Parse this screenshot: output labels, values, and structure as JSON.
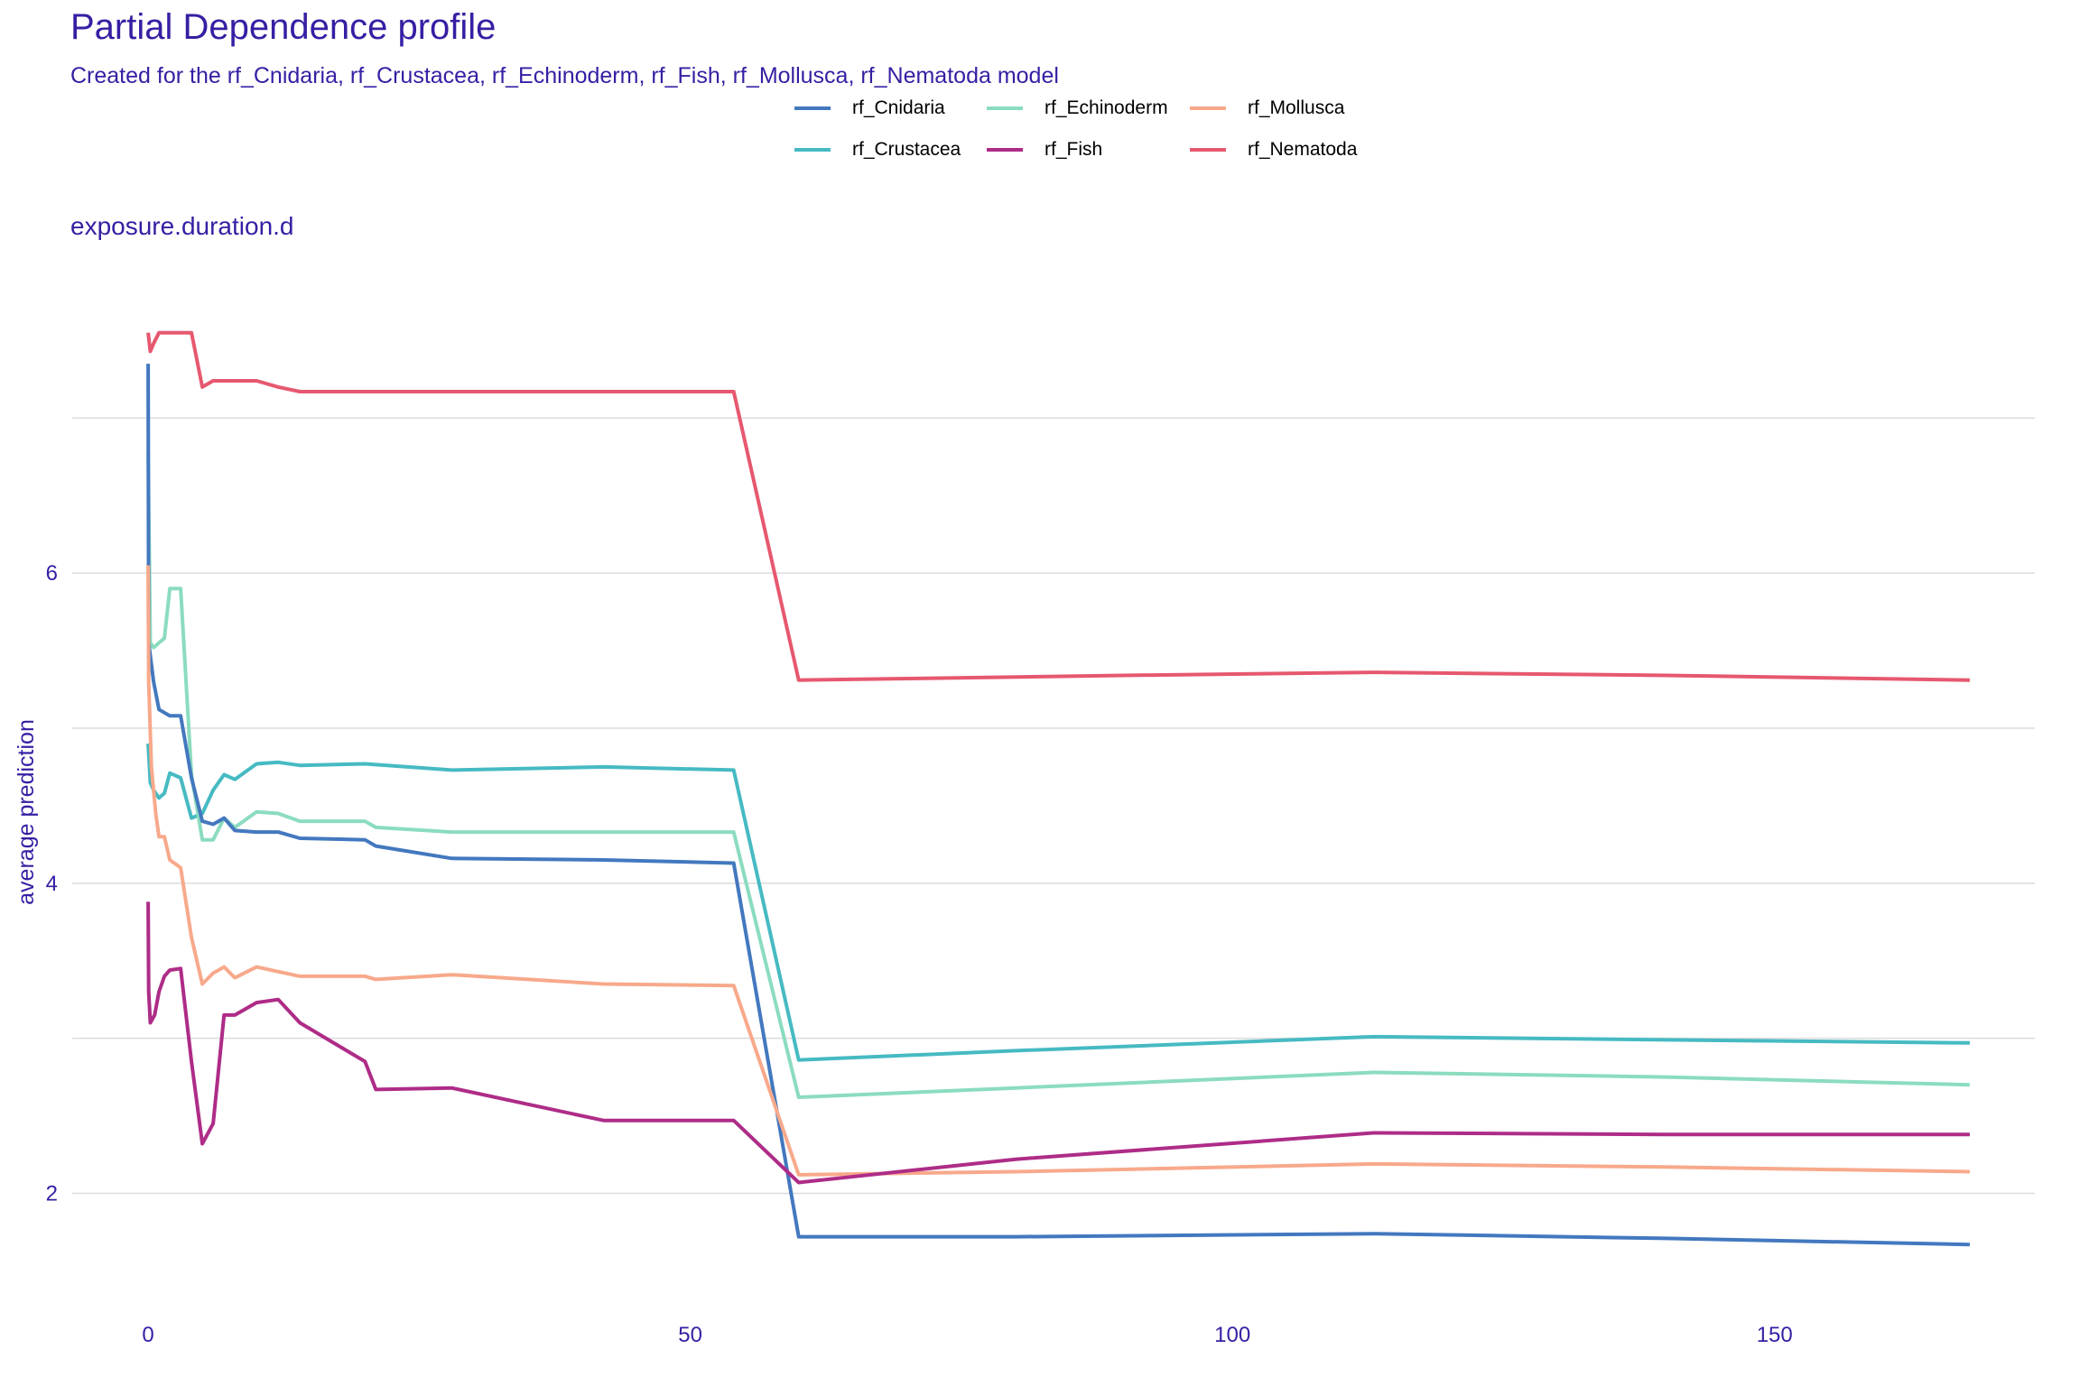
{
  "title": "Partial Dependence profile",
  "subtitle": "Created for the rf_Cnidaria, rf_Crustacea, rf_Echinoderm, rf_Fish, rf_Mollusca, rf_Nematoda model",
  "legend": [
    {
      "name": "rf_Cnidaria",
      "color": "#4378bf"
    },
    {
      "name": "rf_Echinoderm",
      "color": "#8bdcbe"
    },
    {
      "name": "rf_Mollusca",
      "color": "#f8a98b"
    },
    {
      "name": "rf_Crustacea",
      "color": "#46bac2"
    },
    {
      "name": "rf_Fish",
      "color": "#ae2c87"
    },
    {
      "name": "rf_Nematoda",
      "color": "#e6586f"
    }
  ],
  "chart_data": {
    "type": "line",
    "facet_label": "exposure.duration.d",
    "xlabel": "",
    "ylabel": "average prediction",
    "xlim": [
      -7,
      174
    ],
    "ylim": [
      1.2,
      7.95
    ],
    "x_ticks": [
      0,
      50,
      100,
      150
    ],
    "y_ticks": [
      2,
      4,
      6
    ],
    "grid": true,
    "legend_position": "top",
    "series": [
      {
        "name": "rf_Nematoda",
        "color": "#e6586f",
        "x": [
          0,
          0.2,
          0.5,
          1,
          1.5,
          2,
          3,
          4,
          5,
          6,
          7,
          8,
          10,
          12,
          14,
          20,
          28,
          42,
          54,
          60,
          70,
          90,
          113,
          140,
          168
        ],
        "y": [
          7.55,
          7.43,
          7.48,
          7.55,
          7.55,
          7.55,
          7.55,
          7.55,
          7.2,
          7.24,
          7.24,
          7.24,
          7.24,
          7.2,
          7.17,
          7.17,
          7.17,
          7.17,
          7.17,
          5.31,
          5.32,
          5.34,
          5.36,
          5.34,
          5.31
        ]
      },
      {
        "name": "rf_Crustacea",
        "color": "#46bac2",
        "x": [
          0,
          0.2,
          0.5,
          1,
          1.5,
          2,
          3,
          4,
          5,
          6,
          7,
          8,
          10,
          12,
          14,
          20,
          28,
          42,
          54,
          60,
          80,
          113,
          140,
          168
        ],
        "y": [
          4.9,
          4.65,
          4.6,
          4.55,
          4.58,
          4.71,
          4.68,
          4.42,
          4.45,
          4.6,
          4.7,
          4.67,
          4.77,
          4.78,
          4.76,
          4.77,
          4.73,
          4.75,
          4.73,
          2.86,
          2.92,
          3.01,
          2.99,
          2.97
        ]
      },
      {
        "name": "rf_Echinoderm",
        "color": "#8bdcbe",
        "x": [
          0,
          0.2,
          0.5,
          1,
          1.5,
          2,
          3,
          4,
          5,
          6,
          7,
          8,
          10,
          12,
          14,
          20,
          21,
          28,
          42,
          54,
          60,
          80,
          113,
          140,
          168
        ],
        "y": [
          6.78,
          5.55,
          5.52,
          5.55,
          5.58,
          5.9,
          5.9,
          4.7,
          4.28,
          4.28,
          4.42,
          4.36,
          4.46,
          4.45,
          4.4,
          4.4,
          4.36,
          4.33,
          4.33,
          4.33,
          2.62,
          2.68,
          2.78,
          2.75,
          2.7
        ]
      },
      {
        "name": "rf_Cnidaria",
        "color": "#4378bf",
        "x": [
          0,
          0.05,
          0.5,
          1,
          1.5,
          2,
          3,
          4,
          5,
          6,
          7,
          8,
          10,
          12,
          14,
          20,
          21,
          28,
          42,
          54,
          60,
          80,
          113,
          140,
          168
        ],
        "y": [
          7.35,
          5.55,
          5.3,
          5.12,
          5.1,
          5.08,
          5.08,
          4.68,
          4.4,
          4.38,
          4.42,
          4.34,
          4.33,
          4.33,
          4.29,
          4.28,
          4.24,
          4.16,
          4.15,
          4.13,
          1.72,
          1.72,
          1.74,
          1.71,
          1.67
        ]
      },
      {
        "name": "rf_Mollusca",
        "color": "#f8a98b",
        "x": [
          0,
          0.05,
          0.3,
          0.7,
          1,
          1.5,
          2,
          3,
          4,
          5,
          6,
          7,
          8,
          10,
          12,
          14,
          20,
          21,
          28,
          42,
          54,
          60,
          80,
          113,
          140,
          168
        ],
        "y": [
          6.05,
          5.3,
          4.75,
          4.45,
          4.3,
          4.3,
          4.15,
          4.1,
          3.65,
          3.35,
          3.42,
          3.46,
          3.39,
          3.46,
          3.43,
          3.4,
          3.4,
          3.38,
          3.41,
          3.35,
          3.34,
          2.12,
          2.14,
          2.19,
          2.17,
          2.14
        ]
      },
      {
        "name": "rf_Fish",
        "color": "#ae2c87",
        "x": [
          0,
          0.05,
          0.2,
          0.6,
          1,
          1.5,
          2,
          3,
          4,
          5,
          6,
          7,
          8,
          10,
          12,
          14,
          20,
          21,
          28,
          42,
          54,
          60,
          80,
          113,
          140,
          168
        ],
        "y": [
          3.88,
          3.3,
          3.1,
          3.15,
          3.3,
          3.4,
          3.44,
          3.45,
          2.85,
          2.32,
          2.45,
          3.15,
          3.15,
          3.23,
          3.25,
          3.1,
          2.85,
          2.67,
          2.68,
          2.47,
          2.47,
          2.07,
          2.22,
          2.39,
          2.38,
          2.38
        ]
      }
    ]
  }
}
